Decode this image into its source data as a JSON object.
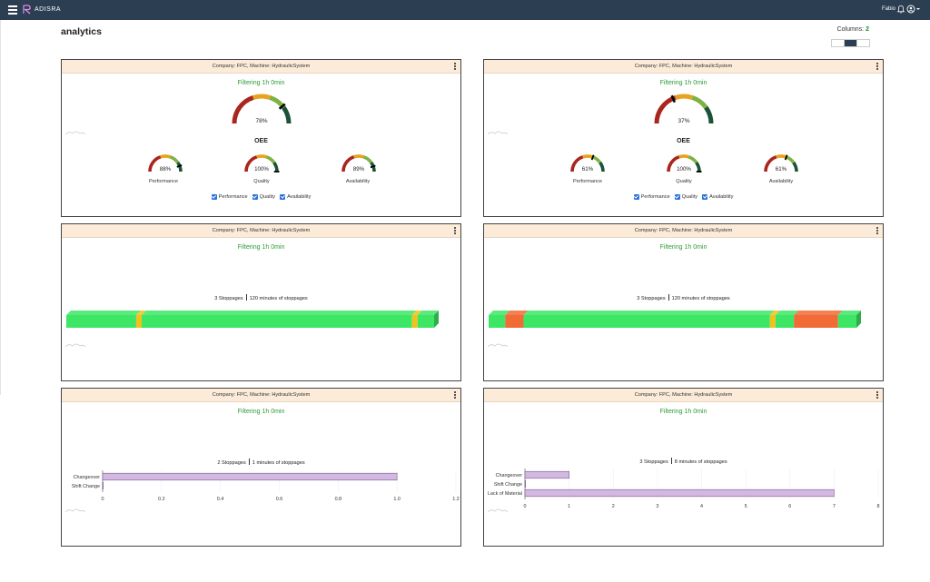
{
  "app": {
    "brand": "ADISRA",
    "user": "Fabio"
  },
  "page": {
    "title": "analytics",
    "columns_label": "Columns:",
    "columns_value": "2"
  },
  "colors": {
    "topbar": "#2b3e52",
    "filter_green": "#2d9a37",
    "bar_green": "#3ee666",
    "bar_yellow": "#f2c21b",
    "bar_orange": "#f06b35",
    "bar_purple": "#d2b9e2",
    "header_bg": "#fbebd8"
  },
  "cards": [
    {
      "header": "Company: FPC, Machine: HydraulicSystem",
      "filter": "Filtering 1h 0min",
      "oee": {
        "label": "OEE",
        "value": 0.78,
        "text": "78%"
      },
      "gauges": [
        {
          "label": "Performance",
          "value": 0.88,
          "text": "88%"
        },
        {
          "label": "Quality",
          "value": 1.0,
          "text": "100%"
        },
        {
          "label": "Availability",
          "value": 0.89,
          "text": "89%"
        }
      ],
      "checks": [
        "Performance",
        "Quality",
        "Availability"
      ]
    },
    {
      "header": "Company: FPC, Machine: HydraulicSystem",
      "filter": "Filtering 1h 0min",
      "oee": {
        "label": "OEE",
        "value": 0.37,
        "text": "37%"
      },
      "gauges": [
        {
          "label": "Performance",
          "value": 0.61,
          "text": "61%"
        },
        {
          "label": "Quality",
          "value": 1.0,
          "text": "100%"
        },
        {
          "label": "Availability",
          "value": 0.61,
          "text": "61%"
        }
      ],
      "checks": [
        "Performance",
        "Quality",
        "Availability"
      ]
    },
    {
      "header": "Company: FPC, Machine: HydraulicSystem",
      "filter": "Filtering 1h 0min",
      "stoppages": "3 Stoppages",
      "minutes": "120 minutes of stoppages",
      "timeline": [
        {
          "state": "running",
          "fraction": 0.19
        },
        {
          "state": "changeover",
          "fraction": 0.015
        },
        {
          "state": "running",
          "fraction": 0.735
        },
        {
          "state": "changeover",
          "fraction": 0.015
        },
        {
          "state": "running",
          "fraction": 0.045
        }
      ]
    },
    {
      "header": "Company: FPC, Machine: HydraulicSystem",
      "filter": "Filtering 1h 0min",
      "stoppages": "3 Stoppages",
      "minutes": "120 minutes of stoppages",
      "timeline": [
        {
          "state": "running",
          "fraction": 0.045
        },
        {
          "state": "stopped",
          "fraction": 0.05
        },
        {
          "state": "running",
          "fraction": 0.67
        },
        {
          "state": "changeover",
          "fraction": 0.015
        },
        {
          "state": "running",
          "fraction": 0.05
        },
        {
          "state": "stopped",
          "fraction": 0.12
        },
        {
          "state": "running",
          "fraction": 0.05
        }
      ]
    },
    {
      "header": "Company: FPC, Machine: HydraulicSystem",
      "filter": "Filtering 1h 0min",
      "stoppages": "2 Stoppages",
      "minutes": "1 minutes of stoppages",
      "chart_data": {
        "type": "bar",
        "orientation": "horizontal",
        "categories": [
          "Changeover",
          "Shift Change"
        ],
        "values": [
          1.0,
          0.0
        ],
        "xlim": [
          0,
          1.2
        ],
        "xticks": [
          "0",
          "0.2",
          "0.4",
          "0.6",
          "0.8",
          "1.0",
          "1.2"
        ]
      }
    },
    {
      "header": "Company: FPC, Machine: HydraulicSystem",
      "filter": "Filtering 1h 0min",
      "stoppages": "3 Stoppages",
      "minutes": "8 minutes of stoppages",
      "chart_data": {
        "type": "bar",
        "orientation": "horizontal",
        "categories": [
          "Changeover",
          "Shift Change",
          "Lack of Material"
        ],
        "values": [
          1,
          0,
          7
        ],
        "xlim": [
          0,
          8
        ],
        "xticks": [
          "0",
          "1",
          "2",
          "3",
          "4",
          "5",
          "6",
          "7",
          "8"
        ]
      }
    }
  ]
}
